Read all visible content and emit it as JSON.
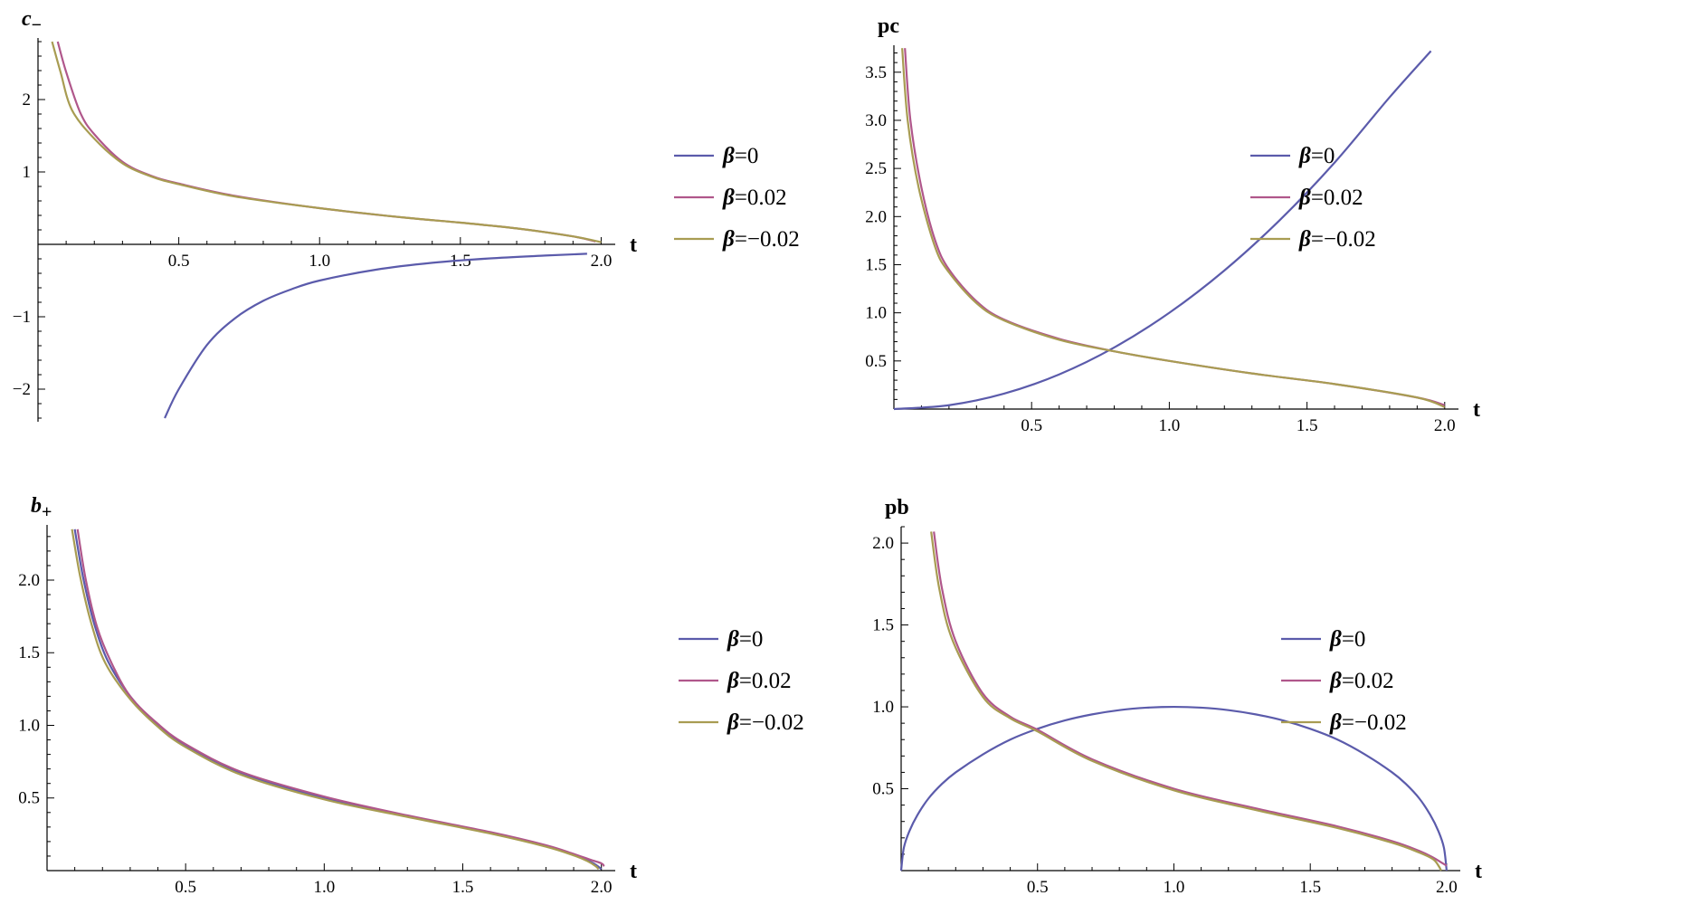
{
  "colors": {
    "beta_0": "#5b5bab",
    "beta_pos": "#b0578b",
    "beta_neg": "#a89c52",
    "axis": "#000000"
  },
  "chart_data": [
    {
      "type": "line",
      "ylabel": "c",
      "ylabel_sub": "−",
      "xlabel": "t",
      "xlim": [
        0,
        2.05
      ],
      "ylim": [
        -2.45,
        2.85
      ],
      "x_axis_at": 0,
      "x_ticks": [
        0.5,
        1.0,
        1.5,
        2.0
      ],
      "x_tick_labels": [
        "0.5",
        "1.0",
        "1.5",
        "2.0"
      ],
      "y_ticks": [
        -2,
        -1,
        1,
        2
      ],
      "y_tick_labels": [
        "−2",
        "−1",
        "1",
        "2"
      ],
      "legend": [
        "β=0",
        "β=0.02",
        "β=−0.02"
      ],
      "series": [
        {
          "name": "β=0",
          "x": [
            0.45,
            0.5,
            0.6,
            0.7,
            0.8,
            0.9,
            1.0,
            1.2,
            1.4,
            1.6,
            1.8,
            1.9,
            1.95
          ],
          "y": [
            -2.4,
            -2.0,
            -1.39,
            -1.02,
            -0.78,
            -0.62,
            -0.5,
            -0.35,
            -0.255,
            -0.195,
            -0.155,
            -0.138,
            -0.13
          ]
        },
        {
          "name": "β=0.02",
          "x": [
            0.07,
            0.1,
            0.15,
            0.2,
            0.3,
            0.4,
            0.5,
            0.7,
            1.0,
            1.3,
            1.5,
            1.7,
            1.9,
            1.98
          ],
          "y": [
            2.8,
            2.38,
            1.82,
            1.52,
            1.14,
            0.95,
            0.84,
            0.67,
            0.5,
            0.37,
            0.3,
            0.22,
            0.11,
            0.04
          ]
        },
        {
          "name": "β=−0.02",
          "x": [
            0.05,
            0.08,
            0.12,
            0.2,
            0.3,
            0.4,
            0.5,
            0.7,
            1.0,
            1.3,
            1.5,
            1.7,
            1.9,
            2.0
          ],
          "y": [
            2.8,
            2.38,
            1.86,
            1.46,
            1.12,
            0.94,
            0.83,
            0.66,
            0.5,
            0.37,
            0.3,
            0.22,
            0.11,
            0.03
          ]
        }
      ]
    },
    {
      "type": "line",
      "ylabel": "pc",
      "xlabel": "t",
      "xlim": [
        0,
        2.05
      ],
      "ylim": [
        0,
        3.78
      ],
      "x_axis_at": 0,
      "x_ticks": [
        0.5,
        1.0,
        1.5,
        2.0
      ],
      "x_tick_labels": [
        "0.5",
        "1.0",
        "1.5",
        "2.0"
      ],
      "y_ticks": [
        0.5,
        1.0,
        1.5,
        2.0,
        2.5,
        3.0,
        3.5
      ],
      "y_tick_labels": [
        "0.5",
        "1.0",
        "1.5",
        "2.0",
        "2.5",
        "3.0",
        "3.5"
      ],
      "legend": [
        "β=0",
        "β=0.02",
        "β=−0.02"
      ],
      "series": [
        {
          "name": "β=0",
          "x": [
            0,
            0.2,
            0.4,
            0.6,
            0.8,
            1.0,
            1.2,
            1.4,
            1.6,
            1.8,
            1.95
          ],
          "y": [
            0,
            0.04,
            0.16,
            0.36,
            0.64,
            1.0,
            1.44,
            1.96,
            2.56,
            3.24,
            3.72
          ]
        },
        {
          "name": "β=0.02",
          "x": [
            0.04,
            0.06,
            0.1,
            0.15,
            0.2,
            0.3,
            0.4,
            0.6,
            0.8,
            1.0,
            1.3,
            1.6,
            1.9,
            2.0
          ],
          "y": [
            3.75,
            3.0,
            2.3,
            1.75,
            1.45,
            1.12,
            0.93,
            0.73,
            0.6,
            0.5,
            0.37,
            0.26,
            0.12,
            0.04
          ]
        },
        {
          "name": "β=−0.02",
          "x": [
            0.03,
            0.05,
            0.09,
            0.15,
            0.2,
            0.3,
            0.4,
            0.6,
            0.8,
            1.0,
            1.3,
            1.6,
            1.9,
            2.0
          ],
          "y": [
            3.75,
            3.0,
            2.3,
            1.68,
            1.42,
            1.1,
            0.92,
            0.72,
            0.6,
            0.5,
            0.37,
            0.26,
            0.12,
            0.02
          ]
        }
      ]
    },
    {
      "type": "line",
      "ylabel": "b",
      "ylabel_sub": "+",
      "xlabel": "t",
      "xlim": [
        0,
        2.05
      ],
      "ylim": [
        0,
        2.38
      ],
      "x_axis_at": 0,
      "x_ticks": [
        0.5,
        1.0,
        1.5,
        2.0
      ],
      "x_tick_labels": [
        "0.5",
        "1.0",
        "1.5",
        "2.0"
      ],
      "y_ticks": [
        0.5,
        1.0,
        1.5,
        2.0
      ],
      "y_tick_labels": [
        "0.5",
        "1.0",
        "1.5",
        "2.0"
      ],
      "legend": [
        "β=0",
        "β=0.02",
        "β=−0.02"
      ],
      "series": [
        {
          "name": "β=0",
          "x": [
            0.1,
            0.13,
            0.17,
            0.22,
            0.3,
            0.4,
            0.5,
            0.7,
            1.0,
            1.3,
            1.6,
            1.8,
            1.9,
            1.95,
            1.98,
            2.0
          ],
          "y": [
            2.35,
            2.02,
            1.7,
            1.44,
            1.2,
            1.0,
            0.86,
            0.67,
            0.5,
            0.375,
            0.26,
            0.17,
            0.11,
            0.07,
            0.04,
            0.01
          ]
        },
        {
          "name": "β=0.02",
          "x": [
            0.11,
            0.14,
            0.18,
            0.23,
            0.3,
            0.4,
            0.5,
            0.7,
            1.0,
            1.3,
            1.6,
            1.8,
            1.9,
            1.96,
            2.0,
            2.01
          ],
          "y": [
            2.35,
            2.0,
            1.68,
            1.44,
            1.2,
            1.01,
            0.87,
            0.68,
            0.51,
            0.38,
            0.265,
            0.175,
            0.115,
            0.075,
            0.05,
            0.03
          ]
        },
        {
          "name": "β=−0.02",
          "x": [
            0.09,
            0.12,
            0.16,
            0.21,
            0.3,
            0.4,
            0.5,
            0.7,
            1.0,
            1.3,
            1.6,
            1.8,
            1.9,
            1.95,
            1.98,
            1.99
          ],
          "y": [
            2.35,
            2.02,
            1.7,
            1.43,
            1.18,
            0.99,
            0.85,
            0.66,
            0.49,
            0.37,
            0.255,
            0.165,
            0.105,
            0.065,
            0.03,
            0.01
          ]
        }
      ]
    },
    {
      "type": "line",
      "ylabel": "pb",
      "xlabel": "t",
      "xlim": [
        0,
        2.05
      ],
      "ylim": [
        0,
        2.1
      ],
      "x_axis_at": 0,
      "x_ticks": [
        0.5,
        1.0,
        1.5,
        2.0
      ],
      "x_tick_labels": [
        "0.5",
        "1.0",
        "1.5",
        "2.0"
      ],
      "y_ticks": [
        0.5,
        1.0,
        1.5,
        2.0
      ],
      "y_tick_labels": [
        "0.5",
        "1.0",
        "1.5",
        "2.0"
      ],
      "legend": [
        "β=0",
        "β=0.02",
        "β=−0.02"
      ],
      "series": [
        {
          "name": "β=0",
          "x": [
            0,
            0.01,
            0.03,
            0.06,
            0.1,
            0.15,
            0.2,
            0.3,
            0.4,
            0.5,
            0.6,
            0.7,
            0.8,
            0.9,
            1.0,
            1.1,
            1.2,
            1.3,
            1.4,
            1.5,
            1.6,
            1.7,
            1.8,
            1.85,
            1.9,
            1.94,
            1.97,
            1.99,
            2.0
          ],
          "y": [
            0,
            0.14,
            0.24,
            0.34,
            0.44,
            0.53,
            0.6,
            0.71,
            0.8,
            0.866,
            0.917,
            0.954,
            0.98,
            0.995,
            1.0,
            0.995,
            0.98,
            0.954,
            0.917,
            0.866,
            0.8,
            0.71,
            0.6,
            0.53,
            0.44,
            0.34,
            0.24,
            0.14,
            0.0
          ]
        },
        {
          "name": "β=0.02",
          "x": [
            0.12,
            0.15,
            0.2,
            0.3,
            0.4,
            0.5,
            0.7,
            1.0,
            1.3,
            1.6,
            1.8,
            1.9,
            1.95,
            1.98,
            2.0
          ],
          "y": [
            2.07,
            1.72,
            1.4,
            1.08,
            0.94,
            0.86,
            0.68,
            0.5,
            0.38,
            0.27,
            0.18,
            0.12,
            0.08,
            0.05,
            0.03
          ]
        },
        {
          "name": "β=−0.02",
          "x": [
            0.11,
            0.14,
            0.19,
            0.3,
            0.4,
            0.5,
            0.7,
            1.0,
            1.3,
            1.6,
            1.8,
            1.9,
            1.95,
            1.97,
            1.98
          ],
          "y": [
            2.07,
            1.72,
            1.4,
            1.06,
            0.93,
            0.85,
            0.67,
            0.49,
            0.37,
            0.26,
            0.17,
            0.11,
            0.07,
            0.03,
            0.0
          ]
        }
      ]
    }
  ]
}
